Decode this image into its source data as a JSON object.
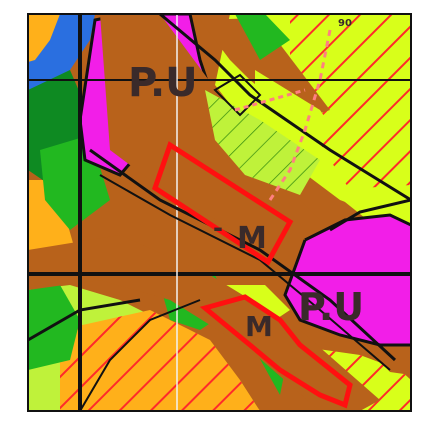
{
  "map": {
    "colors": {
      "brown": "#b8621b",
      "magenta": "#f21ee8",
      "lime": "#d8ff1a",
      "yellow_green": "#bff23a",
      "green": "#22b820",
      "dark_green": "#0e8a22",
      "orange": "#ffb01a",
      "blue": "#2a6fe0",
      "red_outline": "#ff1010",
      "red_hatch": "#ff2a2a",
      "black_line": "#111111",
      "grid_line": "#f2f2f2"
    },
    "labels": {
      "pu_top": "P.U",
      "pu_right": "P.U",
      "m_center": "M",
      "m_lower": "M",
      "minus_sign": "-",
      "small_number": "90"
    }
  }
}
